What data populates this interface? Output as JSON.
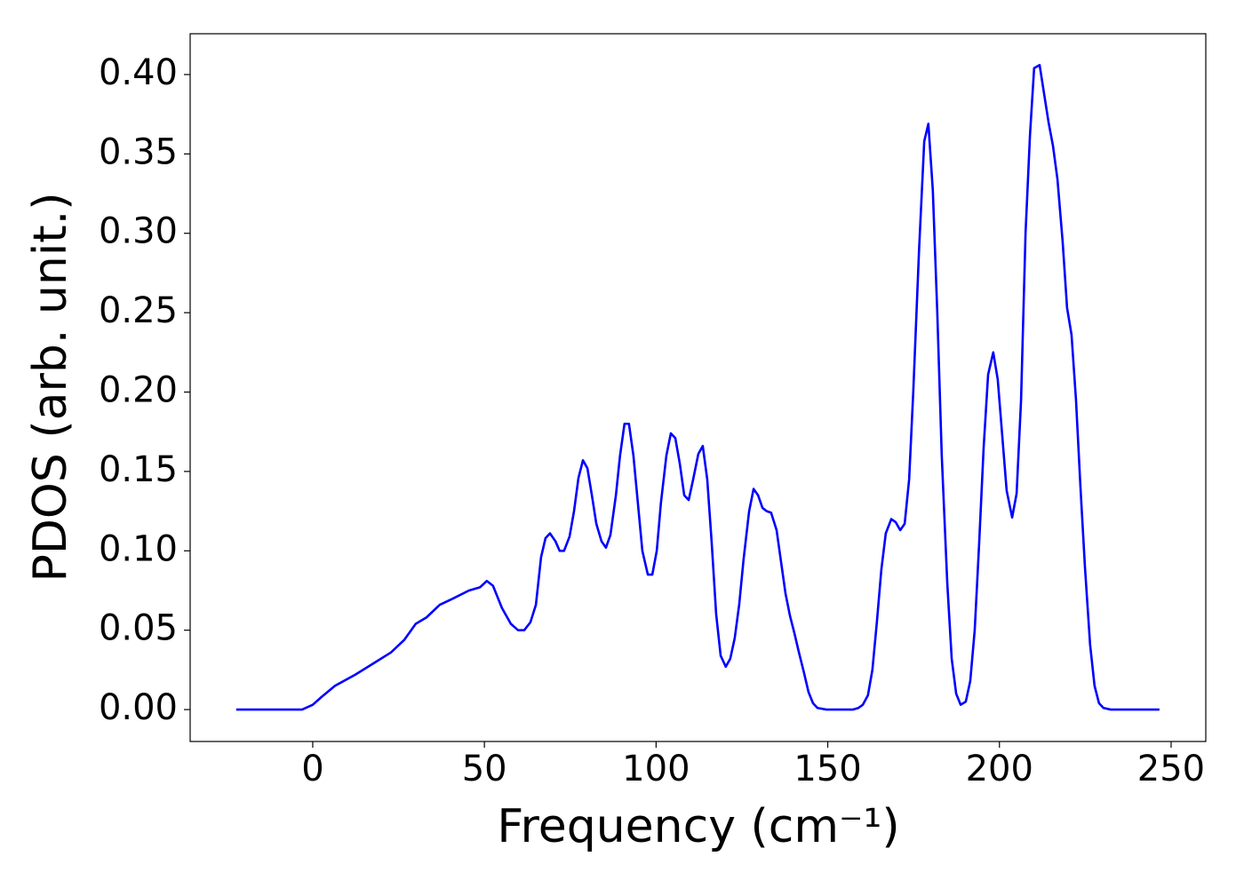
{
  "chart_data": {
    "type": "line",
    "xlabel": "Frequency (cm⁻¹)",
    "ylabel": "PDOS (arb. unit.)",
    "x": [
      -22.3,
      -3.1,
      0,
      2.6,
      6.5,
      12.4,
      17.6,
      22.8,
      26.7,
      30,
      33.1,
      37,
      40.9,
      45.5,
      48.7,
      50.7,
      52.5,
      55.1,
      57.7,
      59.8,
      61.6,
      63.4,
      65.0,
      66.5,
      67.8,
      69.1,
      70.7,
      71.9,
      73.2,
      74.8,
      76.1,
      77.4,
      78.7,
      80.0,
      81.3,
      82.6,
      84.1,
      85.4,
      86.7,
      88.3,
      89.5,
      90.8,
      92.1,
      93.4,
      94.7,
      96.0,
      97.6,
      98.9,
      100.2,
      101.4,
      103.0,
      104.3,
      105.6,
      106.9,
      108.2,
      109.5,
      110.8,
      112.3,
      113.6,
      114.9,
      116.2,
      117.5,
      118.8,
      120.3,
      121.6,
      122.9,
      124.2,
      125.5,
      127.1,
      128.4,
      129.7,
      131.0,
      132.2,
      133.5,
      135.1,
      136.4,
      137.7,
      139.0,
      140.3,
      141.6,
      143.1,
      144.4,
      145.7,
      147.0,
      149.6,
      157.3,
      158.9,
      160.2,
      161.7,
      163.0,
      164.3,
      165.6,
      166.9,
      168.5,
      169.8,
      171.1,
      172.4,
      173.7,
      174.9,
      176.6,
      178.1,
      179.3,
      180.6,
      181.9,
      183.2,
      184.8,
      186.1,
      187.4,
      188.7,
      190.2,
      191.5,
      192.8,
      194.1,
      195.4,
      196.7,
      198.2,
      199.5,
      200.8,
      202.1,
      203.7,
      205.0,
      206.3,
      207.6,
      208.9,
      210.1,
      211.7,
      213.0,
      214.3,
      215.6,
      216.9,
      218.4,
      219.7,
      221.0,
      222.3,
      223.6,
      224.9,
      226.4,
      227.7,
      229.0,
      230.3,
      232.4,
      246.6
    ],
    "series": [
      {
        "color": "#0000ff",
        "values": [
          0,
          0,
          0.003,
          0.008,
          0.015,
          0.022,
          0.029,
          0.036,
          0.044,
          0.054,
          0.058,
          0.066,
          0.07,
          0.075,
          0.077,
          0.081,
          0.078,
          0.064,
          0.054,
          0.05,
          0.05,
          0.055,
          0.066,
          0.096,
          0.108,
          0.111,
          0.106,
          0.1,
          0.1,
          0.109,
          0.125,
          0.146,
          0.157,
          0.152,
          0.135,
          0.117,
          0.106,
          0.102,
          0.11,
          0.135,
          0.16,
          0.18,
          0.18,
          0.16,
          0.13,
          0.1,
          0.085,
          0.085,
          0.1,
          0.13,
          0.16,
          0.174,
          0.171,
          0.155,
          0.135,
          0.132,
          0.145,
          0.161,
          0.166,
          0.145,
          0.105,
          0.06,
          0.034,
          0.027,
          0.032,
          0.045,
          0.066,
          0.095,
          0.125,
          0.139,
          0.135,
          0.127,
          0.125,
          0.124,
          0.113,
          0.093,
          0.073,
          0.059,
          0.048,
          0.036,
          0.023,
          0.011,
          0.004,
          0.001,
          0,
          0,
          0.001,
          0.003,
          0.009,
          0.025,
          0.055,
          0.088,
          0.111,
          0.12,
          0.118,
          0.113,
          0.117,
          0.145,
          0.2,
          0.29,
          0.358,
          0.369,
          0.327,
          0.25,
          0.16,
          0.08,
          0.032,
          0.01,
          0.003,
          0.005,
          0.018,
          0.05,
          0.105,
          0.165,
          0.211,
          0.225,
          0.208,
          0.173,
          0.138,
          0.121,
          0.136,
          0.195,
          0.3,
          0.362,
          0.404,
          0.406,
          0.388,
          0.37,
          0.355,
          0.334,
          0.295,
          0.253,
          0.236,
          0.195,
          0.14,
          0.09,
          0.041,
          0.015,
          0.004,
          0.001,
          0,
          0
        ]
      }
    ],
    "xlim": [
      -35.7,
      260.1
    ],
    "ylim": [
      -0.0201,
      0.4257
    ],
    "xticks": [
      0,
      50,
      100,
      150,
      200,
      250
    ],
    "yticks": [
      {
        "value": 0,
        "label": "0.00"
      },
      {
        "value": 0.05,
        "label": "0.05"
      },
      {
        "value": 0.1,
        "label": "0.10"
      },
      {
        "value": 0.15,
        "label": "0.15"
      },
      {
        "value": 0.2,
        "label": "0.20"
      },
      {
        "value": 0.25,
        "label": "0.25"
      },
      {
        "value": 0.3,
        "label": "0.30"
      },
      {
        "value": 0.35,
        "label": "0.35"
      },
      {
        "value": 0.4,
        "label": "0.40"
      }
    ],
    "grid": false
  }
}
